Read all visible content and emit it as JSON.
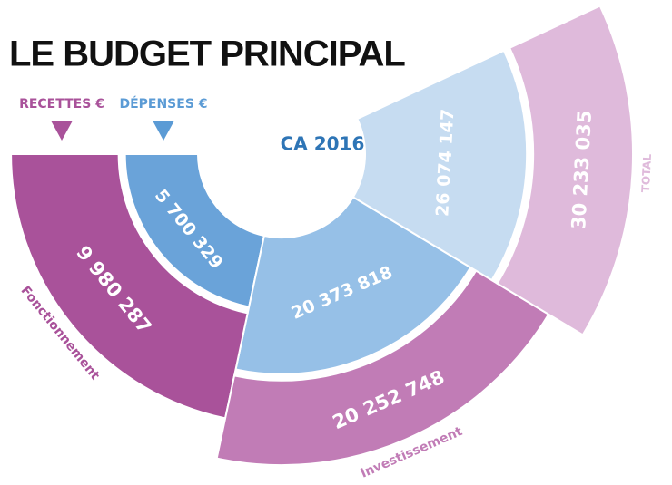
{
  "chart_data": {
    "type": "donut",
    "title": "LE BUDGET PRINCIPAL",
    "subtitle": "CA 2016",
    "categories": [
      "Fonctionnement",
      "Investissement",
      "TOTAL"
    ],
    "series": [
      {
        "name": "RECETTES €",
        "color": "#a9529a",
        "colors": [
          "#a9529a",
          "#c17cb6",
          "#dfbadb"
        ],
        "values": [
          9980287,
          20252748,
          30233035
        ],
        "value_labels": [
          "9 980 287",
          "20 252 748",
          "30 233 035"
        ]
      },
      {
        "name": "DÉPENSES €",
        "color": "#5b9bd5",
        "colors": [
          "#6aa3d9",
          "#96c0e7",
          "#c6dcf1"
        ],
        "values": [
          5700329,
          20373818,
          26074147
        ],
        "value_labels": [
          "5 700 329",
          "20 373 818",
          "26 074 147"
        ]
      }
    ]
  }
}
